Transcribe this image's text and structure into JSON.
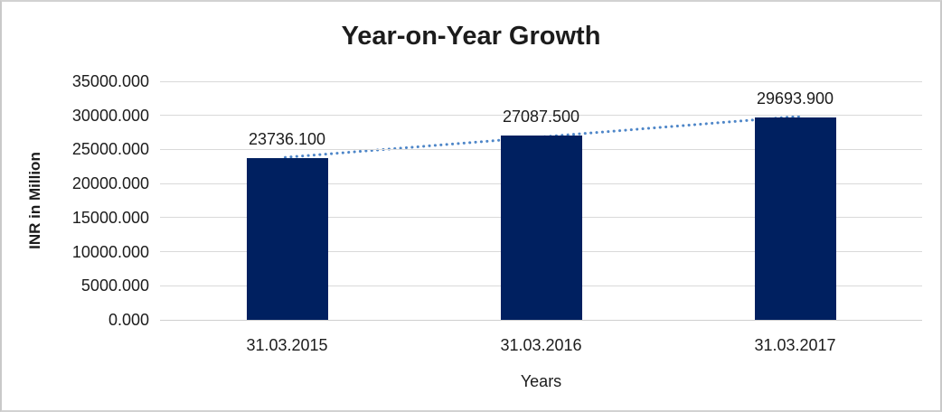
{
  "chart_data": {
    "type": "bar",
    "title": "Year-on-Year Growth",
    "xlabel": "Years",
    "ylabel": "INR in Million",
    "categories": [
      "31.03.2015",
      "31.03.2016",
      "31.03.2017"
    ],
    "values": [
      23736.1,
      27087.5,
      29693.9
    ],
    "data_labels": [
      "23736.100",
      "27087.500",
      "29693.900"
    ],
    "ylim": [
      0,
      35000
    ],
    "ytick_interval": 5000,
    "yticks": [
      "0.000",
      "5000.000",
      "10000.000",
      "15000.000",
      "20000.000",
      "25000.000",
      "30000.000",
      "35000.000"
    ],
    "grid": true,
    "legend": "none",
    "bar_color": "#002060",
    "gridline_color": "#d9d9d9",
    "axis_line_color": "#cfcfcf",
    "trendline": {
      "type": "linear",
      "style": "dotted",
      "color": "#4e86c8"
    }
  }
}
